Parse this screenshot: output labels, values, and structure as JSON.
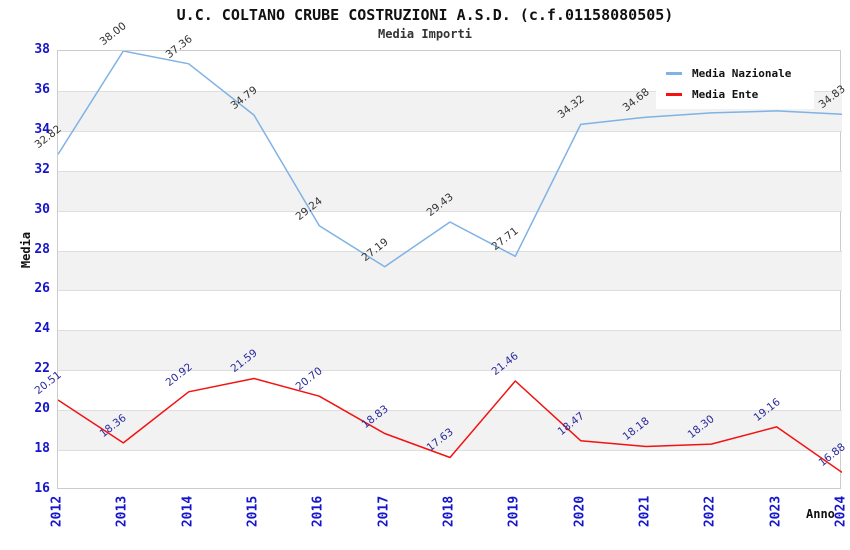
{
  "title": "U.C. COLTANO CRUBE COSTRUZIONI A.S.D. (c.f.01158080505)",
  "subtitle": "Media Importi",
  "colors": {
    "national_line": "#7fb2e5",
    "ente_line": "#f21212",
    "axis_tick_text": "#1515cc",
    "national_label_text": "#333333",
    "ente_label_text": "#2a2a9c",
    "band": "#f2f2f2",
    "gridline": "#dedede",
    "plot_border": "#cccccc"
  },
  "legend": {
    "items": [
      {
        "label": "Media Nazionale",
        "color": "#7fb2e5"
      },
      {
        "label": "Media Ente",
        "color": "#f21212"
      }
    ]
  },
  "chart_data": {
    "type": "line",
    "title": "U.C. COLTANO CRUBE COSTRUZIONI A.S.D. (c.f.01158080505)",
    "subtitle": "Media Importi",
    "xlabel": "Anno",
    "ylabel": "Media",
    "x": [
      "2012",
      "2013",
      "2014",
      "2015",
      "2016",
      "2017",
      "2018",
      "2019",
      "2020",
      "2021",
      "2022",
      "2023",
      "2024"
    ],
    "ylim": [
      16,
      38
    ],
    "ytick_step": 2,
    "grid": "horizontal-bands",
    "legend_position": "top-right-inside",
    "series": [
      {
        "name": "Media Nazionale",
        "color": "#7fb2e5",
        "label_color": "#333333",
        "values": [
          32.82,
          38.0,
          37.36,
          34.79,
          29.24,
          27.19,
          29.43,
          27.71,
          34.32,
          34.68,
          34.9,
          35.0,
          34.83
        ],
        "labels": [
          "32.82",
          "38.00",
          "37.36",
          "34.79",
          "29.24",
          "27.19",
          "29.43",
          "27.71",
          "34.32",
          "34.68",
          "",
          "",
          "34.83"
        ]
      },
      {
        "name": "Media Ente",
        "color": "#f21212",
        "label_color": "#2a2a9c",
        "values": [
          20.51,
          18.36,
          20.92,
          21.59,
          20.7,
          18.83,
          17.63,
          21.46,
          18.47,
          18.18,
          18.3,
          19.16,
          16.88
        ],
        "labels": [
          "20.51",
          "18.36",
          "20.92",
          "21.59",
          "20.70",
          "18.83",
          "17.63",
          "21.46",
          "18.47",
          "18.18",
          "18.30",
          "19.16",
          "16.88"
        ]
      }
    ]
  }
}
